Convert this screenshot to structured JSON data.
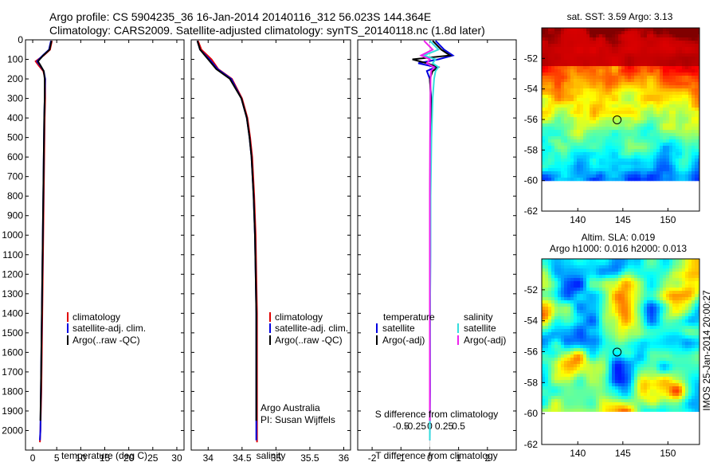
{
  "header": {
    "line1": "Argo profile: CS 5904235_36 16-Jan-2014 20140116_312 56.023S 144.364E",
    "line2": "Climatology: CARS2009. Satellite-adjusted climatology: synTS_20140118.nc (1.8d later)"
  },
  "legend": {
    "climatology": "climatology",
    "satellite_adj": "satellite-adj. clim.",
    "argo": "Argo(..raw -QC)",
    "temperature_head": "temperature",
    "salinity_head": "salinity",
    "satellite": "satellite",
    "argo_adj": "Argo(-adj)"
  },
  "credit": {
    "line1": "Argo Australia",
    "line2": "PI: Susan Wijffels"
  },
  "timestamp": "IMOS 25-Jan-2014 20:00:27",
  "colors": {
    "climatology": "#e00000",
    "satellite": "#0000e0",
    "argo": "#000000",
    "sat_s": "#33dddd",
    "argo_s": "#ee22ee"
  },
  "chart_data": [
    {
      "type": "line",
      "id": "temperature",
      "xlabel": "temperature (deg C)",
      "ylabel": "",
      "xlim": [
        -1.5,
        31.5
      ],
      "ylim": [
        2100,
        0
      ],
      "xticks": [
        "0",
        "5",
        "10",
        "15",
        "20",
        "25",
        "30"
      ],
      "xtick_values": [
        0,
        5,
        10,
        15,
        20,
        25,
        30
      ],
      "yticks": [
        "0",
        "100",
        "200",
        "300",
        "400",
        "500",
        "600",
        "700",
        "800",
        "900",
        "1000",
        "1100",
        "1200",
        "1300",
        "1400",
        "1500",
        "1600",
        "1700",
        "1800",
        "1900",
        "2000"
      ],
      "ytick_values": [
        0,
        100,
        200,
        300,
        400,
        500,
        600,
        700,
        800,
        900,
        1000,
        1100,
        1200,
        1300,
        1400,
        1500,
        1600,
        1700,
        1800,
        1900,
        2000
      ],
      "series": [
        {
          "name": "climatology",
          "color": "#e00000",
          "depth": [
            5,
            50,
            80,
            110,
            130,
            160,
            200,
            300,
            400,
            600,
            800,
            1000,
            1200,
            1400,
            1600,
            1800,
            2000,
            2060
          ],
          "values": [
            4.0,
            3.6,
            2.3,
            0.6,
            1.2,
            2.2,
            2.6,
            2.6,
            2.5,
            2.4,
            2.3,
            2.2,
            2.1,
            2.0,
            1.9,
            1.8,
            1.6,
            1.5
          ]
        },
        {
          "name": "satellite-adj. clim.",
          "color": "#0000e0",
          "depth": [
            5,
            50,
            80,
            110,
            130,
            160,
            200,
            300,
            400,
            600,
            800,
            1000,
            1200,
            1400,
            1600,
            1800,
            2000,
            2050
          ],
          "values": [
            3.8,
            3.4,
            2.1,
            0.9,
            1.5,
            2.3,
            2.6,
            2.5,
            2.4,
            2.3,
            2.2,
            2.1,
            2.0,
            1.9,
            1.8,
            1.7,
            1.6,
            1.5
          ]
        },
        {
          "name": "Argo(..raw -QC)",
          "color": "#000000",
          "depth": [
            5,
            50,
            80,
            110,
            130,
            160,
            200,
            300,
            400,
            600,
            800,
            1000,
            1200,
            1400,
            1600,
            1800,
            1950
          ],
          "values": [
            3.9,
            3.5,
            2.2,
            1.1,
            1.6,
            2.3,
            2.5,
            2.5,
            2.4,
            2.3,
            2.2,
            2.1,
            2.0,
            1.9,
            1.8,
            1.7,
            1.6
          ]
        }
      ]
    },
    {
      "type": "line",
      "id": "salinity",
      "xlabel": "salinity",
      "ylabel": "",
      "xlim": [
        33.75,
        36.1
      ],
      "ylim": [
        2100,
        0
      ],
      "xticks": [
        "34",
        "34.5",
        "35",
        "35.5",
        "36"
      ],
      "xtick_values": [
        34,
        34.5,
        35,
        35.5,
        36
      ],
      "series": [
        {
          "name": "climatology",
          "color": "#e00000",
          "depth": [
            5,
            50,
            100,
            150,
            200,
            300,
            400,
            500,
            600,
            800,
            1000,
            1200,
            1400,
            1600,
            1800,
            2000,
            2060
          ],
          "values": [
            33.85,
            33.9,
            34.05,
            34.15,
            34.35,
            34.5,
            34.58,
            34.62,
            34.65,
            34.68,
            34.7,
            34.71,
            34.72,
            34.72,
            34.72,
            34.72,
            34.72
          ]
        },
        {
          "name": "satellite-adj. clim.",
          "color": "#0000e0",
          "depth": [
            5,
            50,
            100,
            150,
            200,
            300,
            400,
            500,
            600,
            800,
            1000,
            1200,
            1400,
            1600,
            1800,
            2000,
            2050
          ],
          "values": [
            33.84,
            33.88,
            34.02,
            34.14,
            34.34,
            34.49,
            34.57,
            34.61,
            34.64,
            34.67,
            34.69,
            34.7,
            34.71,
            34.71,
            34.71,
            34.71,
            34.71
          ]
        },
        {
          "name": "Argo(..raw -QC)",
          "color": "#000000",
          "depth": [
            5,
            50,
            100,
            150,
            200,
            300,
            400,
            500,
            600,
            800,
            1000,
            1200,
            1400,
            1600,
            1800,
            1950
          ],
          "values": [
            33.84,
            33.88,
            34.0,
            34.12,
            34.32,
            34.49,
            34.57,
            34.61,
            34.64,
            34.67,
            34.69,
            34.7,
            34.71,
            34.71,
            34.71,
            34.71
          ]
        }
      ]
    },
    {
      "type": "line",
      "id": "difference",
      "xlabel": "T difference from climatology",
      "xlabel2": "S difference from climatology",
      "xlim": [
        -2.5,
        3
      ],
      "ylim": [
        2100,
        0
      ],
      "xticks": [
        "-2",
        "-1",
        "0",
        "1",
        "2"
      ],
      "xtick_values": [
        -2,
        -1,
        0,
        1,
        2
      ],
      "xticks2": [
        "-0.5",
        "-0.25",
        "0",
        "0.25",
        "0.5"
      ],
      "xtick2_values": [
        -1.0,
        -0.5,
        0,
        0.5,
        1.0
      ],
      "series": [
        {
          "name": "temperature satellite",
          "color": "#0000e0",
          "depth": [
            5,
            50,
            80,
            100,
            120,
            140,
            160,
            200,
            300,
            500,
            800,
            1100,
            1500,
            1800,
            2050
          ],
          "values": [
            0.2,
            0.5,
            0.8,
            0.3,
            -0.4,
            0.2,
            -0.1,
            0.0,
            0.05,
            0.03,
            0.02,
            0.02,
            0.01,
            0.01,
            0.0
          ]
        },
        {
          "name": "temperature Argo(-adj)",
          "color": "#000000",
          "depth": [
            5,
            50,
            80,
            100,
            120,
            140,
            160,
            200,
            300,
            500,
            800,
            1100,
            1500,
            1800,
            1950
          ],
          "values": [
            0.1,
            0.4,
            0.7,
            -0.6,
            -0.1,
            0.3,
            0.1,
            0.0,
            0.04,
            0.02,
            0.01,
            0.01,
            0.0,
            0.0,
            0.0
          ]
        },
        {
          "name": "salinity satellite",
          "color": "#33dddd",
          "depth": [
            5,
            50,
            80,
            100,
            120,
            140,
            160,
            200,
            300,
            500,
            800,
            1100,
            1500,
            1800,
            2050
          ],
          "values": [
            0.0,
            0.3,
            -0.2,
            0.2,
            0.1,
            0.3,
            0.2,
            0.15,
            0.1,
            0.06,
            0.03,
            0.02,
            0.01,
            0.0,
            0.0
          ]
        },
        {
          "name": "salinity Argo(-adj)",
          "color": "#ee22ee",
          "depth": [
            5,
            50,
            80,
            100,
            120,
            140,
            160,
            200,
            300,
            500,
            800,
            1100,
            1500,
            1800,
            1950
          ],
          "values": [
            -0.2,
            0.1,
            -0.3,
            0.0,
            -0.1,
            0.15,
            0.05,
            0.03,
            0.02,
            0.01,
            0.0,
            0.0,
            0.0,
            0.0,
            0.0
          ]
        }
      ]
    },
    {
      "type": "heatmap",
      "id": "sst",
      "title": "sat. SST: 3.59  Argo: 3.13",
      "xlim": [
        136,
        153.5
      ],
      "ylim": [
        -62,
        -50
      ],
      "xticks": [
        "140",
        "145",
        "150"
      ],
      "xtick_values": [
        140,
        145,
        150
      ],
      "yticks": [
        "-52",
        "-54",
        "-56",
        "-58",
        "-60",
        "-62"
      ],
      "ytick_values": [
        -52,
        -54,
        -56,
        -58,
        -60,
        -62
      ],
      "marker": {
        "lon": 144.364,
        "lat": -56.023
      },
      "data_bottom_lat": -60
    },
    {
      "type": "heatmap",
      "id": "sla",
      "title": "Altim. SLA: 0.019",
      "subtitle": "Argo h1000: 0.016 h2000: 0.013",
      "xlim": [
        136,
        153.5
      ],
      "ylim": [
        -62,
        -50
      ],
      "xticks": [
        "140",
        "145",
        "150"
      ],
      "xtick_values": [
        140,
        145,
        150
      ],
      "yticks": [
        "-52",
        "-54",
        "-56",
        "-58",
        "-60",
        "-62"
      ],
      "ytick_values": [
        -52,
        -54,
        -56,
        -58,
        -60,
        -62
      ],
      "marker": {
        "lon": 144.364,
        "lat": -56.023
      },
      "data_bottom_lat": -60
    }
  ]
}
